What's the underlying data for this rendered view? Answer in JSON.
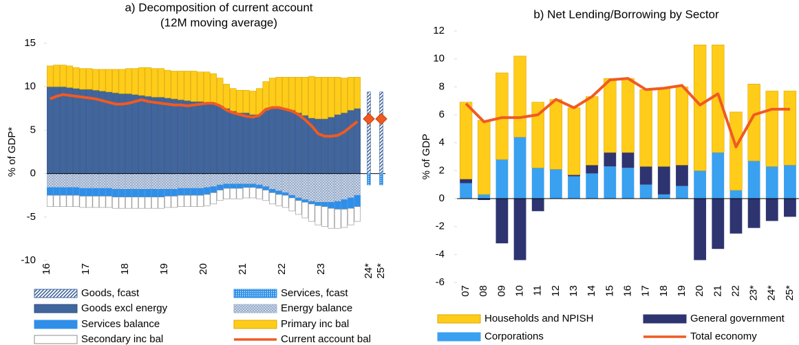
{
  "chart_data": [
    {
      "type": "bar",
      "stacked": true,
      "title": "a) Decomposition of current account",
      "subtitle": "(12M moving average)",
      "y_label": "% of GDP*",
      "categories": [
        "16",
        null,
        null,
        null,
        null,
        null,
        "17",
        null,
        null,
        null,
        null,
        null,
        "18",
        null,
        null,
        null,
        null,
        null,
        "19",
        null,
        null,
        null,
        null,
        null,
        "20",
        null,
        null,
        null,
        null,
        null,
        "21",
        null,
        null,
        null,
        null,
        null,
        "22",
        null,
        null,
        null,
        null,
        null,
        "23",
        null,
        null,
        null,
        null,
        null
      ],
      "series": [
        {
          "name": "Goods excl energy",
          "color": "#41669d",
          "edge": "#2f4f80",
          "values": [
            10,
            10,
            10,
            9.9,
            9.8,
            9.7,
            9.7,
            9.6,
            9.5,
            9.4,
            9.3,
            9.2,
            9.2,
            9.1,
            9,
            8.9,
            8.8,
            8.8,
            8.7,
            8.6,
            8.5,
            8.4,
            8.3,
            8.3,
            8.2,
            8,
            7.8,
            7.5,
            7.2,
            7,
            7,
            6.8,
            6.8,
            7.3,
            7.6,
            7.6,
            7.5,
            7.3,
            7,
            6.7,
            6.4,
            6.3,
            6.3,
            6.5,
            6.8,
            7,
            7.3,
            7.5
          ]
        },
        {
          "name": "Energy balance",
          "color": "#9fb3cf",
          "pattern": "cross",
          "edge": "#9fb3cf",
          "values": [
            -1.6,
            -1.6,
            -1.6,
            -1.6,
            -1.6,
            -1.7,
            -1.7,
            -1.7,
            -1.7,
            -1.7,
            -1.8,
            -1.8,
            -1.8,
            -1.8,
            -1.8,
            -1.8,
            -1.8,
            -1.8,
            -1.8,
            -1.8,
            -1.7,
            -1.7,
            -1.7,
            -1.7,
            -1.6,
            -1.5,
            -1.3,
            -1.2,
            -1.2,
            -1.2,
            -1.2,
            -1.2,
            -1.3,
            -1.5,
            -1.8,
            -2,
            -2.2,
            -2.5,
            -2.8,
            -3,
            -3.2,
            -3.3,
            -3.3,
            -3.3,
            -3.2,
            -3,
            -2.8,
            -2.5
          ]
        },
        {
          "name": "Services balance",
          "color": "#2f8fe8",
          "edge": "#2f8fe8",
          "values": [
            -0.9,
            -0.9,
            -0.9,
            -0.9,
            -0.9,
            -0.9,
            -0.9,
            -0.9,
            -0.9,
            -0.9,
            -0.9,
            -0.9,
            -0.9,
            -0.9,
            -0.9,
            -0.9,
            -0.9,
            -0.9,
            -0.8,
            -0.8,
            -0.8,
            -0.8,
            -0.8,
            -0.8,
            -0.8,
            -0.7,
            -0.6,
            -0.5,
            -0.5,
            -0.5,
            -0.4,
            -0.4,
            -0.4,
            -0.4,
            -0.4,
            -0.4,
            -0.3,
            -0.3,
            -0.3,
            -0.3,
            -0.3,
            -0.4,
            -0.5,
            -0.7,
            -0.9,
            -1.1,
            -1.2,
            -1.3
          ]
        },
        {
          "name": "Primary inc bal",
          "color": "#ffcc1a",
          "edge": "#d9a800",
          "values": [
            2.4,
            2.5,
            2.5,
            2.5,
            2.4,
            2.4,
            2.4,
            2.4,
            2.5,
            2.6,
            2.7,
            2.8,
            2.9,
            3,
            3.2,
            3.3,
            3.3,
            3.3,
            3.2,
            3.2,
            3.3,
            3.4,
            3.5,
            3.4,
            3.5,
            3.5,
            3.2,
            2.8,
            2.6,
            2.6,
            2.6,
            2.7,
            3,
            3.3,
            3.4,
            3.5,
            3.6,
            3.8,
            4.1,
            4.4,
            4.8,
            4.8,
            4.8,
            4.6,
            4.3,
            4,
            3.8,
            3.6
          ]
        },
        {
          "name": "Secondary inc bal",
          "color": "#ffffff",
          "edge": "#8c8c8c",
          "values": [
            -1.3,
            -1.3,
            -1.3,
            -1.3,
            -1.3,
            -1.3,
            -1.3,
            -1.3,
            -1.3,
            -1.3,
            -1.3,
            -1.3,
            -1.3,
            -1.3,
            -1.3,
            -1.3,
            -1.3,
            -1.3,
            -1.3,
            -1.3,
            -1.3,
            -1.3,
            -1.3,
            -1.3,
            -1.3,
            -1.3,
            -1.2,
            -1.2,
            -1.2,
            -1.2,
            -1.2,
            -1.2,
            -1.2,
            -1.2,
            -1.3,
            -1.3,
            -1.4,
            -1.5,
            -1.6,
            -1.8,
            -2,
            -2.2,
            -2.3,
            -2.3,
            -2.2,
            -2.1,
            -1.9,
            -1.7
          ]
        },
        {
          "name": "Current account bal",
          "type": "line",
          "color": "#f05a22",
          "values": [
            8.6,
            8.9,
            9.1,
            9,
            8.9,
            8.8,
            8.7,
            8.6,
            8.4,
            8.2,
            8,
            8,
            8.1,
            8.3,
            8.5,
            8.3,
            8.2,
            8.1,
            8,
            7.9,
            7.9,
            7.8,
            7.9,
            8,
            8.1,
            8.1,
            7.8,
            7.3,
            7,
            6.8,
            6.6,
            6.5,
            6.7,
            7.4,
            7.6,
            7.6,
            7.4,
            7.2,
            6.8,
            6.2,
            5.5,
            4.6,
            4.3,
            4.3,
            4.4,
            4.8,
            5.4,
            6
          ]
        }
      ],
      "forecast": {
        "categories": [
          "24*",
          "25*"
        ],
        "series": [
          {
            "name": "Goods, fcast",
            "color": "#41669d",
            "pattern": "diag",
            "values": [
              9.4,
              9.4
            ]
          },
          {
            "name": "Services, fcast",
            "color": "#2f8fe8",
            "pattern": "dots",
            "values": [
              -1.3,
              -1.3
            ]
          }
        ],
        "current_account": [
          6.3,
          6.3
        ]
      },
      "ylim": [
        -10,
        15
      ],
      "yticks": [
        -10,
        -5,
        0,
        5,
        10,
        15
      ],
      "grid": false
    },
    {
      "type": "bar",
      "stacked": true,
      "title": "b) Net Lending/Borrowing  by Sector",
      "y_label": "% of GDP",
      "categories": [
        "07",
        "08",
        "09",
        "10",
        "11",
        "12",
        "13",
        "14",
        "15",
        "16",
        "17",
        "18",
        "19",
        "20",
        "21",
        "22",
        "23*",
        "24*",
        "25*"
      ],
      "series": [
        {
          "name": "Corporations",
          "color": "#3aa0f0",
          "values": [
            1.1,
            0.3,
            2.8,
            4.4,
            2.2,
            2.1,
            1.6,
            1.8,
            2.3,
            2.2,
            1,
            0.3,
            0.9,
            2,
            3.3,
            0.6,
            2.7,
            2.3,
            2.4
          ]
        },
        {
          "name": "General government",
          "color": "#2e3470",
          "values": [
            0.3,
            -0.1,
            -3.2,
            -4.4,
            -0.9,
            0,
            0.1,
            0.6,
            1,
            1.1,
            1.3,
            2,
            1.5,
            -4.4,
            -3.6,
            -2.5,
            -2.1,
            -1.6,
            -1.3
          ]
        },
        {
          "name": "Households and NPISH",
          "color": "#ffcc1a",
          "edge": "#d9a800",
          "values": [
            5.5,
            5.3,
            6.2,
            5.8,
            4.7,
            5,
            4.8,
            4.9,
            5.3,
            5.3,
            5.5,
            5.6,
            5.6,
            9,
            7.7,
            5.6,
            5.5,
            5.4,
            5.3
          ]
        },
        {
          "name": "Total economy",
          "type": "line",
          "color": "#f05a22",
          "values": [
            6.8,
            5.5,
            5.8,
            5.8,
            6,
            7.1,
            6.5,
            7.3,
            8.5,
            8.6,
            7.8,
            7.9,
            8.1,
            6.7,
            7.5,
            3.7,
            6,
            6.4,
            6.4
          ]
        }
      ],
      "ylim": [
        -6,
        12
      ],
      "yticks": [
        -6,
        -4,
        -2,
        0,
        2,
        4,
        6,
        8,
        10,
        12
      ],
      "grid": false
    }
  ]
}
